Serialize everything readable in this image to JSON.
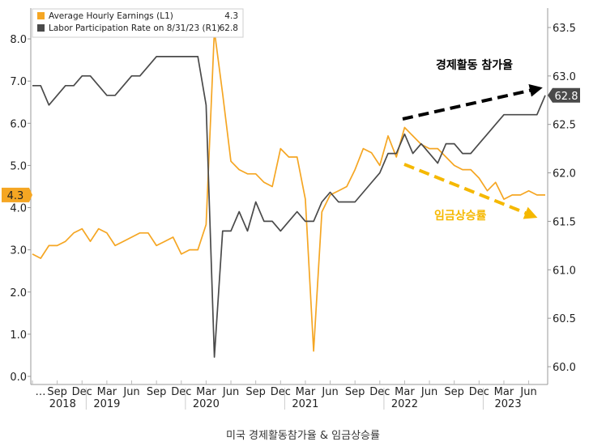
{
  "caption": "미국 경제활동참가율 & 임금상승률",
  "colors": {
    "earnings": "#F5A623",
    "participation": "#4A4A4A",
    "arrow_black": "#000000",
    "arrow_gold": "#F5B800",
    "grid": "#dddddd"
  },
  "chart_data": {
    "type": "line",
    "title": "",
    "left_axis": {
      "min": 0,
      "max": 8.5,
      "ticks": [
        0.0,
        1.0,
        2.0,
        3.0,
        4.0,
        5.0,
        6.0,
        7.0,
        8.0
      ],
      "labels": [
        "0.0",
        "1.0",
        "2.0",
        "3.0",
        "4.0",
        "5.0",
        "6.0",
        "7.0",
        "8.0"
      ]
    },
    "right_axis": {
      "min": 59.9,
      "max": 63.6,
      "ticks": [
        60.0,
        60.5,
        61.0,
        61.5,
        62.0,
        62.5,
        63.0,
        63.5
      ],
      "labels": [
        "60.0",
        "60.5",
        "61.0",
        "61.5",
        "62.0",
        "62.5",
        "63.0",
        "63.5"
      ]
    },
    "x_month_labels": [
      "…",
      "Sep",
      "Dec",
      "Mar",
      "Jun",
      "Sep",
      "Dec",
      "Mar",
      "Jun",
      "Sep",
      "Dec",
      "Mar",
      "Jun",
      "Sep",
      "Dec",
      "Mar",
      "Jun",
      "Sep",
      "Dec",
      "Mar",
      "Jun"
    ],
    "x_years": [
      "2018",
      "2019",
      "2020",
      "2021",
      "2022",
      "2023"
    ],
    "months": [
      "2018-06",
      "2018-07",
      "2018-08",
      "2018-09",
      "2018-10",
      "2018-11",
      "2018-12",
      "2019-01",
      "2019-02",
      "2019-03",
      "2019-04",
      "2019-05",
      "2019-06",
      "2019-07",
      "2019-08",
      "2019-09",
      "2019-10",
      "2019-11",
      "2019-12",
      "2020-01",
      "2020-02",
      "2020-03",
      "2020-04",
      "2020-05",
      "2020-06",
      "2020-07",
      "2020-08",
      "2020-09",
      "2020-10",
      "2020-11",
      "2020-12",
      "2021-01",
      "2021-02",
      "2021-03",
      "2021-04",
      "2021-05",
      "2021-06",
      "2021-07",
      "2021-08",
      "2021-09",
      "2021-10",
      "2021-11",
      "2021-12",
      "2022-01",
      "2022-02",
      "2022-03",
      "2022-04",
      "2022-05",
      "2022-06",
      "2022-07",
      "2022-08",
      "2022-09",
      "2022-10",
      "2022-11",
      "2022-12",
      "2023-01",
      "2023-02",
      "2023-03",
      "2023-04",
      "2023-05",
      "2023-06",
      "2023-07",
      "2023-08"
    ],
    "series": [
      {
        "name": "Average Hourly Earnings (L1)",
        "last_value": "4.3",
        "axis": "left",
        "values": [
          2.9,
          2.8,
          3.1,
          3.1,
          3.2,
          3.4,
          3.5,
          3.2,
          3.5,
          3.4,
          3.1,
          3.2,
          3.3,
          3.4,
          3.4,
          3.1,
          3.2,
          3.3,
          2.9,
          3.0,
          3.0,
          3.6,
          8.2,
          6.7,
          5.1,
          4.9,
          4.8,
          4.8,
          4.6,
          4.5,
          5.4,
          5.2,
          5.2,
          4.2,
          0.6,
          3.9,
          4.3,
          4.4,
          4.5,
          4.9,
          5.4,
          5.3,
          5.0,
          5.7,
          5.2,
          5.9,
          5.7,
          5.5,
          5.4,
          5.4,
          5.2,
          5.0,
          4.9,
          4.9,
          4.7,
          4.4,
          4.6,
          4.2,
          4.3,
          4.3,
          4.4,
          4.3,
          4.3
        ]
      },
      {
        "name": "Labor Participation Rate on 8/31/23 (R1)",
        "last_value": "62.8",
        "axis": "right",
        "values": [
          62.9,
          62.9,
          62.7,
          62.8,
          62.9,
          62.9,
          63.0,
          63.0,
          62.9,
          62.8,
          62.8,
          62.9,
          63.0,
          63.0,
          63.1,
          63.2,
          63.2,
          63.2,
          63.2,
          63.2,
          63.2,
          62.7,
          60.1,
          61.4,
          61.4,
          61.6,
          61.4,
          61.7,
          61.5,
          61.5,
          61.4,
          61.5,
          61.6,
          61.5,
          61.5,
          61.7,
          61.8,
          61.7,
          61.7,
          61.7,
          61.8,
          61.9,
          62.0,
          62.2,
          62.2,
          62.4,
          62.2,
          62.3,
          62.2,
          62.1,
          62.3,
          62.3,
          62.2,
          62.2,
          62.3,
          62.4,
          62.5,
          62.6,
          62.6,
          62.6,
          62.6,
          62.6,
          62.8
        ]
      }
    ],
    "annotations": [
      {
        "text": "경제활동 참가율",
        "color": "#000000"
      },
      {
        "text": "임금상승률",
        "color": "#F5B800"
      }
    ],
    "legend_position": "top-left",
    "grid": false
  }
}
